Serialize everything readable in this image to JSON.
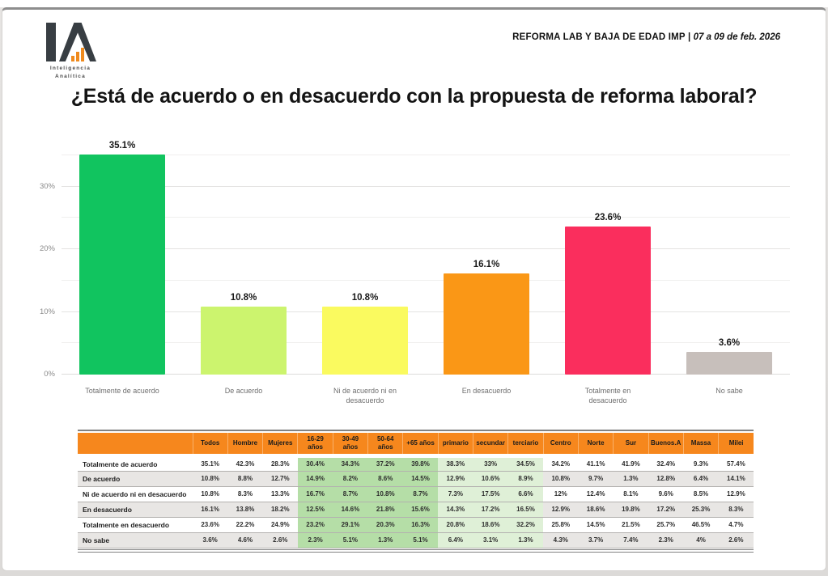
{
  "header": {
    "logo": {
      "letters": "IA",
      "subtitle_line1": "Inteligencia",
      "subtitle_line2": "Analítica"
    },
    "report_title_bold": "REFORMA LAB Y BAJA DE EDAD IMP |",
    "report_title_date": " 07 a 09 de feb. 2026"
  },
  "title": "¿Está de acuerdo o en desacuerdo con la propuesta de reforma laboral?",
  "chart_data": {
    "type": "bar",
    "title": "¿Está de acuerdo o en desacuerdo con la propuesta de reforma laboral?",
    "categories": [
      "Totalmente de acuerdo",
      "De acuerdo",
      "Ni de acuerdo ni en desacuerdo",
      "En desacuerdo",
      "Totalmente en desacuerdo",
      "No sabe"
    ],
    "values": [
      35.1,
      10.8,
      10.8,
      16.1,
      23.6,
      3.6
    ],
    "value_labels": [
      "35.1%",
      "10.8%",
      "10.8%",
      "16.1%",
      "23.6%",
      "3.6%"
    ],
    "bar_colors": [
      "#11c45f",
      "#ccf46e",
      "#fafa5f",
      "#fa9716",
      "#fa2e5d",
      "#c7bfbb"
    ],
    "xlabel": "",
    "ylabel": "",
    "ylim": [
      0,
      36
    ],
    "grid": "horizontal",
    "yticks_major": [
      {
        "value": 0,
        "label": "0%"
      },
      {
        "value": 10,
        "label": "10%"
      },
      {
        "value": 20,
        "label": "20%"
      },
      {
        "value": 30,
        "label": "30%"
      }
    ],
    "grid_minor": [
      5,
      15,
      25,
      35
    ]
  },
  "table": {
    "columns": [
      "",
      "Todos",
      "Hombre",
      "Mujeres",
      "16-29 años",
      "30-49 años",
      "50-64 años",
      "+65 años",
      "primario",
      "secundar",
      "terciario",
      "Centro",
      "Norte",
      "Sur",
      "Buenos.A",
      "Massa",
      "Milei"
    ],
    "highlight_age_columns": [
      "16-29 años",
      "30-49 años",
      "50-64 años",
      "+65 años"
    ],
    "highlight_education_columns": [
      "primario",
      "secundar",
      "terciario"
    ],
    "rows": [
      {
        "label": "Totalmente de acuerdo",
        "values": [
          "35.1%",
          "42.3%",
          "28.3%",
          "30.4%",
          "34.3%",
          "37.2%",
          "39.8%",
          "38.3%",
          "33%",
          "34.5%",
          "34.2%",
          "41.1%",
          "41.9%",
          "32.4%",
          "9.3%",
          "57.4%"
        ]
      },
      {
        "label": "De acuerdo",
        "values": [
          "10.8%",
          "8.8%",
          "12.7%",
          "14.9%",
          "8.2%",
          "8.6%",
          "14.5%",
          "12.9%",
          "10.6%",
          "8.9%",
          "10.8%",
          "9.7%",
          "1.3%",
          "12.8%",
          "6.4%",
          "14.1%"
        ]
      },
      {
        "label": "Ni de acuerdo ni en desacuerdo",
        "values": [
          "10.8%",
          "8.3%",
          "13.3%",
          "16.7%",
          "8.7%",
          "10.8%",
          "8.7%",
          "7.3%",
          "17.5%",
          "6.6%",
          "12%",
          "12.4%",
          "8.1%",
          "9.6%",
          "8.5%",
          "12.9%"
        ]
      },
      {
        "label": "En desacuerdo",
        "values": [
          "16.1%",
          "13.8%",
          "18.2%",
          "12.5%",
          "14.6%",
          "21.8%",
          "15.6%",
          "14.3%",
          "17.2%",
          "16.5%",
          "12.9%",
          "18.6%",
          "19.8%",
          "17.2%",
          "25.3%",
          "8.3%"
        ]
      },
      {
        "label": "Totalmente en desacuerdo",
        "values": [
          "23.6%",
          "22.2%",
          "24.9%",
          "23.2%",
          "29.1%",
          "20.3%",
          "16.3%",
          "20.8%",
          "18.6%",
          "32.2%",
          "25.8%",
          "14.5%",
          "21.5%",
          "25.7%",
          "46.5%",
          "4.7%"
        ]
      },
      {
        "label": "No sabe",
        "values": [
          "3.6%",
          "4.6%",
          "2.6%",
          "2.3%",
          "5.1%",
          "1.3%",
          "5.1%",
          "6.4%",
          "3.1%",
          "1.3%",
          "4.3%",
          "3.7%",
          "7.4%",
          "2.3%",
          "4%",
          "2.6%"
        ]
      }
    ]
  },
  "colors": {
    "header_bar": "#f6871d",
    "highlight_age": "#b5dea7",
    "highlight_education": "#dff0d7",
    "row_stripe": "#e8e6e4",
    "logo_dark": "#383e43",
    "logo_orange": "#ef8a1d"
  }
}
